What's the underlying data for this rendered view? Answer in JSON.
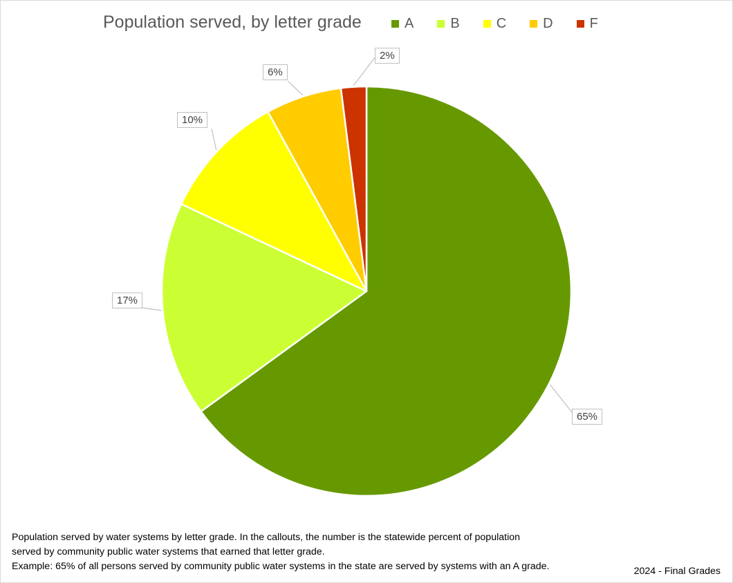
{
  "chart_data": {
    "type": "pie",
    "title": "Population served, by letter grade",
    "categories": [
      "A",
      "B",
      "C",
      "D",
      "F"
    ],
    "values": [
      65,
      17,
      10,
      6,
      2
    ],
    "data_labels": [
      "65%",
      "17%",
      "10%",
      "6%",
      "2%"
    ],
    "colors": [
      "#669900",
      "#CCFF33",
      "#FFFF00",
      "#FFCC00",
      "#CC3300"
    ],
    "legend_position": "top-right",
    "start_angle_deg": 0,
    "direction": "clockwise"
  },
  "notes": {
    "line1": "Population served by water systems by letter grade. In the callouts, the number is the statewide percent of population",
    "line2": "served by community public water systems that earned that letter grade.",
    "line3": "Example: 65% of all persons served by community public water systems in the state are served by systems with an A grade."
  },
  "footer": "2024 - Final Grades"
}
